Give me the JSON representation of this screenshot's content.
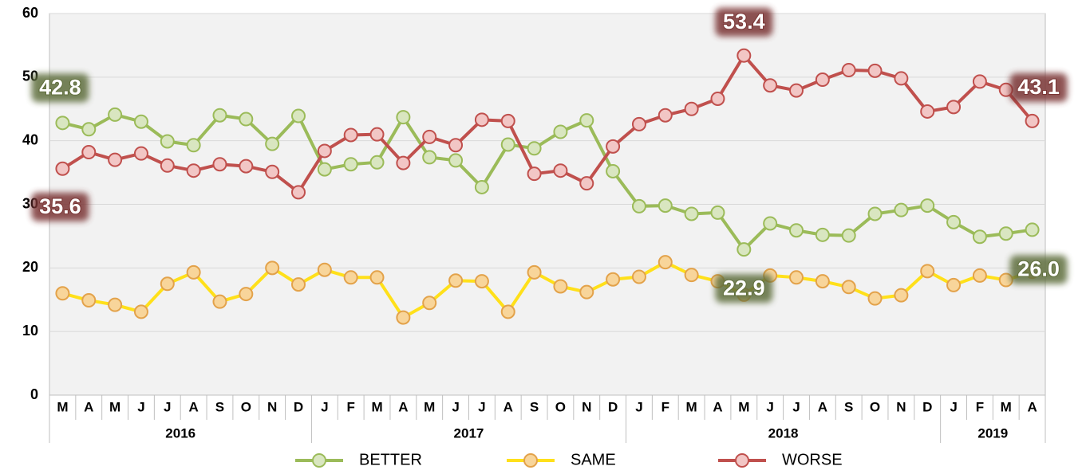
{
  "chart_data": {
    "type": "line",
    "groups": [
      {
        "label": "2016",
        "categories": [
          "M",
          "A",
          "M",
          "J",
          "J",
          "A",
          "S",
          "O",
          "N",
          "D"
        ]
      },
      {
        "label": "2017",
        "categories": [
          "J",
          "F",
          "M",
          "A",
          "M",
          "J",
          "J",
          "A",
          "S",
          "O",
          "N",
          "D"
        ]
      },
      {
        "label": "2018",
        "categories": [
          "J",
          "F",
          "M",
          "A",
          "M",
          "J",
          "J",
          "A",
          "S",
          "O",
          "N",
          "D"
        ]
      },
      {
        "label": "2019",
        "categories": [
          "J",
          "F",
          "M",
          "A"
        ]
      }
    ],
    "ylim": [
      0,
      60
    ],
    "yticks": [
      0,
      10,
      20,
      30,
      40,
      50,
      60
    ],
    "grid": true,
    "series": [
      {
        "name": "BETTER",
        "color": "#9bbb59",
        "marker_fill": "#d9e6c0",
        "label_color": "#5f6e3c",
        "values": [
          42.8,
          41.8,
          44.1,
          43.0,
          39.9,
          39.3,
          44.0,
          43.4,
          39.5,
          43.9,
          35.5,
          36.3,
          36.6,
          43.7,
          37.4,
          36.9,
          32.7,
          39.4,
          38.8,
          41.4,
          43.2,
          35.2,
          29.7,
          29.8,
          28.5,
          28.7,
          22.9,
          27.0,
          25.9,
          25.2,
          25.1,
          28.5,
          29.1,
          29.8,
          27.2,
          24.9,
          25.4,
          26.0
        ],
        "value_labels": [
          "42.8",
          null,
          null,
          null,
          null,
          null,
          null,
          null,
          null,
          null,
          null,
          null,
          null,
          null,
          null,
          null,
          null,
          null,
          null,
          null,
          null,
          null,
          null,
          null,
          null,
          null,
          "22.9",
          null,
          null,
          null,
          null,
          null,
          null,
          null,
          null,
          null,
          null,
          "26.0"
        ]
      },
      {
        "name": "SAME",
        "color": "#ffe01a",
        "marker_fill": "#f8d59a",
        "values": [
          16.0,
          14.9,
          14.2,
          13.1,
          17.5,
          19.3,
          14.7,
          15.9,
          20.0,
          17.4,
          19.7,
          18.5,
          18.5,
          12.2,
          14.5,
          18.0,
          17.9,
          13.1,
          19.3,
          17.1,
          16.2,
          18.2,
          18.6,
          20.9,
          18.9,
          17.9,
          15.8,
          18.8,
          18.5,
          17.9,
          17.0,
          15.2,
          15.7,
          19.5,
          17.3,
          18.8,
          18.1,
          19.4
        ]
      },
      {
        "name": "WORSE",
        "color": "#c0504d",
        "marker_fill": "#f2c6c5",
        "label_color": "#7a3534",
        "values": [
          35.6,
          38.2,
          37.0,
          38.0,
          36.1,
          35.3,
          36.3,
          36.0,
          35.1,
          31.9,
          38.4,
          40.9,
          41.0,
          36.5,
          40.6,
          39.3,
          43.3,
          43.1,
          34.8,
          35.3,
          33.3,
          39.1,
          42.6,
          44.0,
          45.0,
          46.6,
          53.4,
          48.7,
          47.9,
          49.6,
          51.1,
          51.0,
          49.8,
          44.6,
          45.3,
          49.3,
          48.0,
          43.1
        ],
        "value_labels": [
          "35.6",
          null,
          null,
          null,
          null,
          null,
          null,
          null,
          null,
          null,
          null,
          null,
          null,
          null,
          null,
          null,
          null,
          null,
          null,
          null,
          null,
          null,
          null,
          null,
          null,
          null,
          "53.4",
          null,
          null,
          null,
          null,
          null,
          null,
          null,
          null,
          null,
          null,
          "43.1"
        ]
      }
    ]
  }
}
